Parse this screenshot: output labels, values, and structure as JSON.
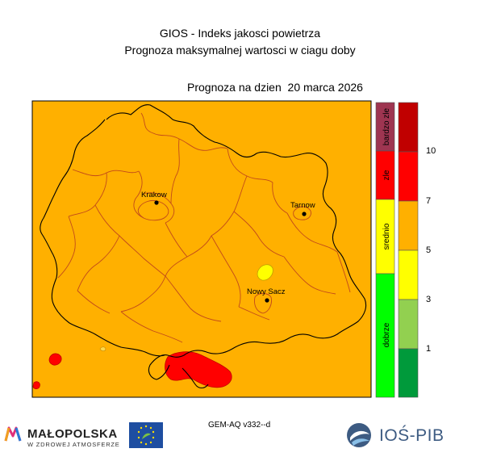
{
  "title_line1": "GIOS - Indeks jakosci powietrza",
  "title_line2": "Prognoza maksymalnej wartosci w ciagu doby",
  "forecast_date": "Prognoza na dzien  20 marca 2026",
  "model_label": "GEM-AQ v332--d",
  "cities": [
    {
      "name": "Krakow"
    },
    {
      "name": "Tarnow"
    },
    {
      "name": "Nowy Sacz"
    }
  ],
  "categories": [
    {
      "label": "bardzo zle",
      "color": "#9e3551"
    },
    {
      "label": "zle",
      "color": "#ff0000"
    },
    {
      "label": "srednio",
      "color": "#ffff00"
    },
    {
      "label": "dobrze",
      "color": "#00ff00"
    }
  ],
  "scale": {
    "colors": [
      "#009a3b",
      "#92d050",
      "#ffff00",
      "#ffb000",
      "#ff0000",
      "#c00000"
    ],
    "tick_labels": [
      "1",
      "3",
      "5",
      "7",
      "10"
    ]
  },
  "background_color": "#ffb000",
  "logos": {
    "malopolska_name": "MAŁOPOLSKA",
    "malopolska_sub": "W ZDROWEJ ATMOSFERZE",
    "ios_name": "IOŚ-PIB"
  }
}
